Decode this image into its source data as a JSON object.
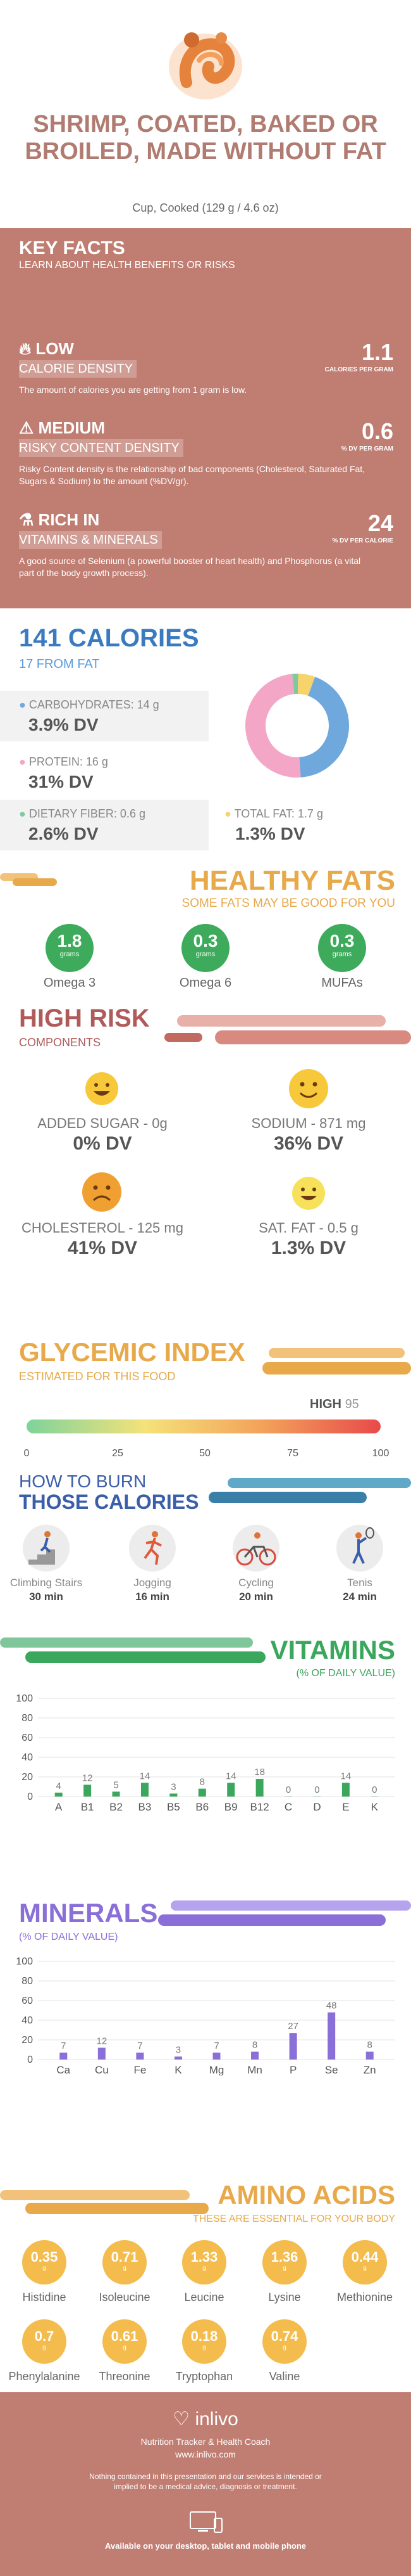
{
  "header": {
    "title": "SHRIMP, COATED, BAKED OR BROILED, MADE WITHOUT FAT",
    "serving": "Cup, Cooked (129 g / 4.6 oz)"
  },
  "key_facts": {
    "title": "KEY FACTS",
    "subtitle": "LEARN ABOUT HEALTH BENEFITS OR RISKS",
    "items": [
      {
        "level": "LOW",
        "band": "CALORIE DENSITY",
        "desc": "The amount of calories you are getting from 1 gram is low.",
        "value": "1.1",
        "unit": "CALORIES PER GRAM"
      },
      {
        "level": "MEDIUM",
        "band": "RISKY CONTENT DENSITY",
        "desc": "Risky Content density is the relationship of bad components (Cholesterol, Saturated Fat, Sugars & Sodium) to the amount (%DV/gr).",
        "value": "0.6",
        "unit": "% DV PER GRAM"
      },
      {
        "level": "RICH  IN",
        "band": "VITAMINS & MINERALS",
        "desc": "A good source of Selenium (a powerful booster of heart health) and Phosphorus (a vital part of the body growth process).",
        "value": "24",
        "unit": "% DV PER CALORIE"
      }
    ]
  },
  "calories": {
    "title": "141 CALORIES",
    "from_fat": "17 FROM FAT",
    "macros": [
      {
        "label": "CARBOHYDRATES: 14 g",
        "dv": "3.9% DV",
        "color": "#6fa8dc"
      },
      {
        "label": "PROTEIN: 16 g",
        "dv": "31% DV",
        "color": "#f4a6c6"
      },
      {
        "label": "DIETARY FIBER: 0.6 g",
        "dv": "2.6% DV",
        "color": "#7fc9a0"
      },
      {
        "label": "TOTAL FAT: 1.7 g",
        "dv": "1.3% DV",
        "color": "#f7d36b"
      }
    ],
    "donut": [
      {
        "name": "carbohydrates",
        "value": 14,
        "color": "#6fa8dc"
      },
      {
        "name": "protein",
        "value": 16,
        "color": "#f4a6c6"
      },
      {
        "name": "fiber",
        "value": 0.6,
        "color": "#7fc9a0"
      },
      {
        "name": "fat",
        "value": 1.7,
        "color": "#f7d36b"
      }
    ]
  },
  "healthy_fats": {
    "title": "HEALTHY FATS",
    "subtitle": "SOME FATS MAY BE GOOD FOR YOU",
    "items": [
      {
        "value": "1.8",
        "unit": "grams",
        "name": "Omega 3"
      },
      {
        "value": "0.3",
        "unit": "grams",
        "name": "Omega 6"
      },
      {
        "value": "0.3",
        "unit": "grams",
        "name": "MUFAs"
      }
    ]
  },
  "high_risk": {
    "title": "HIGH RISK",
    "subtitle": "COMPONENTS",
    "items": [
      {
        "label": "ADDED SUGAR - 0g",
        "dv": "0% DV",
        "face": "happy",
        "color": "#f7c93a"
      },
      {
        "label": "SODIUM - 871 mg",
        "dv": "36% DV",
        "face": "happy",
        "color": "#f7c93a"
      },
      {
        "label": "CHOLESTEROL - 125 mg",
        "dv": "41% DV",
        "face": "sad",
        "color": "#f0a030"
      },
      {
        "label": "SAT. FAT - 0.5 g",
        "dv": "1.3% DV",
        "face": "happy",
        "color": "#f7e15a"
      }
    ]
  },
  "glycemic": {
    "title": "GLYCEMIC INDEX",
    "subtitle": "ESTIMATED FOR THIS FOOD",
    "level": "HIGH",
    "value": "95",
    "ticks": [
      "0",
      "25",
      "50",
      "75",
      "100"
    ]
  },
  "burn": {
    "title_line1": "HOW TO BURN",
    "title_line2": "THOSE CALORIES",
    "activities": [
      {
        "name": "Climbing Stairs",
        "minutes": "30 min",
        "icon": "stairs-icon"
      },
      {
        "name": "Jogging",
        "minutes": "16 min",
        "icon": "jogging-icon"
      },
      {
        "name": "Cycling",
        "minutes": "20 min",
        "icon": "cycling-icon"
      },
      {
        "name": "Tenis",
        "minutes": "24 min",
        "icon": "tennis-icon"
      }
    ]
  },
  "vitamins": {
    "title": "VITAMINS",
    "subtitle": "(% OF DAILY VALUE)"
  },
  "minerals": {
    "title": "MINERALS",
    "subtitle": "(% OF DAILY VALUE)"
  },
  "chart_data": [
    {
      "type": "bar",
      "categories": [
        "A",
        "B1",
        "B2",
        "B3",
        "B5",
        "B6",
        "B9",
        "B12",
        "C",
        "D",
        "E",
        "K"
      ],
      "values": [
        4,
        12,
        5,
        14,
        3,
        8,
        14,
        18,
        0,
        0,
        14,
        0
      ],
      "yticks": [
        "0",
        "20",
        "40",
        "60",
        "80",
        "100"
      ],
      "ylim": [
        0,
        100
      ],
      "color": "#3aa75d"
    },
    {
      "type": "bar",
      "categories": [
        "Ca",
        "Cu",
        "Fe",
        "K",
        "Mg",
        "Mn",
        "P",
        "Se",
        "Zn"
      ],
      "values": [
        7,
        12,
        7,
        3,
        7,
        8,
        27,
        48,
        8
      ],
      "yticks": [
        "0",
        "20",
        "40",
        "60",
        "80",
        "100"
      ],
      "ylim": [
        0,
        100
      ],
      "color": "#8a6fd8"
    }
  ],
  "amino_acids": {
    "title": "AMINO ACIDS",
    "subtitle": "THESE ARE ESSENTIAL FOR YOUR BODY",
    "items": [
      {
        "value": "0.35",
        "unit": "g",
        "name": "Histidine"
      },
      {
        "value": "0.71",
        "unit": "g",
        "name": "Isoleucine"
      },
      {
        "value": "1.33",
        "unit": "g",
        "name": "Leucine"
      },
      {
        "value": "1.36",
        "unit": "g",
        "name": "Lysine"
      },
      {
        "value": "0.44",
        "unit": "g",
        "name": "Methionine"
      },
      {
        "value": "0.7",
        "unit": "g",
        "name": "Phenylalanine"
      },
      {
        "value": "0.61",
        "unit": "g",
        "name": "Threonine"
      },
      {
        "value": "0.18",
        "unit": "g",
        "name": "Tryptophan"
      },
      {
        "value": "0.74",
        "unit": "g",
        "name": "Valine"
      }
    ]
  },
  "footer": {
    "brand": "inlivo",
    "tagline": "Nutrition Tracker & Health Coach",
    "url": "www.inlivo.com",
    "disclaimer": "Nothing contained in this presentation and our services is intended or implied to be a medical advice, diagnosis or treatment.",
    "available": "Available on your desktop, tablet and mobile phone"
  }
}
